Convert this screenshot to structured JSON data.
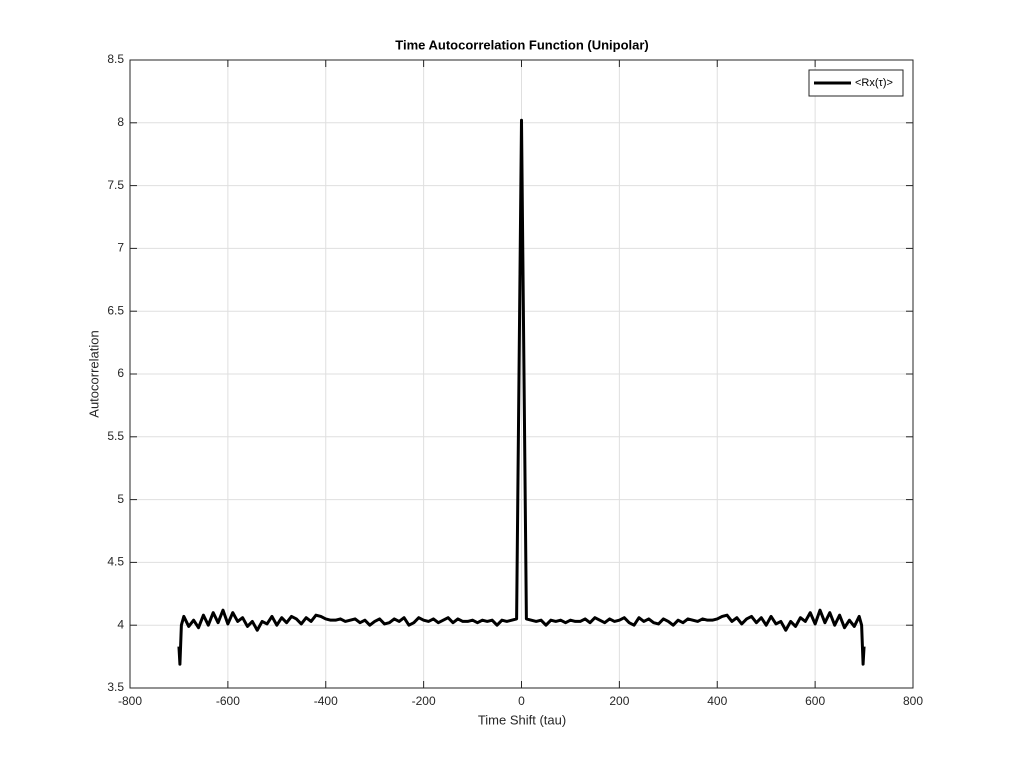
{
  "chart_data": {
    "type": "line",
    "title": "Time Autocorrelation Function (Unipolar)",
    "xlabel": "Time Shift (tau)",
    "ylabel": "Autocorrelation",
    "xlim": [
      -800,
      800
    ],
    "xticks": [
      -800,
      -600,
      -400,
      -200,
      0,
      200,
      400,
      600,
      800
    ],
    "ylim": [
      3.5,
      8.5
    ],
    "yticks": [
      3.5,
      4,
      4.5,
      5,
      5.5,
      6,
      6.5,
      7,
      7.5,
      8,
      8.5
    ],
    "grid": true,
    "legend": "upper right",
    "x": [
      -700,
      -698,
      -695,
      -690,
      -680,
      -670,
      -660,
      -650,
      -640,
      -630,
      -620,
      -610,
      -600,
      -590,
      -580,
      -570,
      -560,
      -550,
      -540,
      -530,
      -520,
      -510,
      -500,
      -490,
      -480,
      -470,
      -460,
      -450,
      -440,
      -430,
      -420,
      -410,
      -400,
      -390,
      -380,
      -370,
      -360,
      -350,
      -340,
      -330,
      -320,
      -310,
      -300,
      -290,
      -280,
      -270,
      -260,
      -250,
      -240,
      -230,
      -220,
      -210,
      -200,
      -190,
      -180,
      -170,
      -160,
      -150,
      -140,
      -130,
      -120,
      -110,
      -100,
      -90,
      -80,
      -70,
      -60,
      -50,
      -40,
      -30,
      -20,
      -10,
      0,
      10,
      20,
      30,
      40,
      50,
      60,
      70,
      80,
      90,
      100,
      110,
      120,
      130,
      140,
      150,
      160,
      170,
      180,
      190,
      200,
      210,
      220,
      230,
      240,
      250,
      260,
      270,
      280,
      290,
      300,
      310,
      320,
      330,
      340,
      350,
      360,
      370,
      380,
      390,
      400,
      410,
      420,
      430,
      440,
      450,
      460,
      470,
      480,
      490,
      500,
      510,
      520,
      530,
      540,
      550,
      560,
      570,
      580,
      590,
      600,
      610,
      620,
      630,
      640,
      650,
      660,
      670,
      680,
      690,
      695,
      698,
      700
    ],
    "series": [
      {
        "name": "<Rx(τ)>",
        "color": "#000000",
        "values": [
          3.83,
          3.69,
          4.0,
          4.07,
          3.99,
          4.04,
          3.98,
          4.08,
          4.0,
          4.1,
          4.02,
          4.12,
          4.01,
          4.1,
          4.03,
          4.06,
          3.99,
          4.03,
          3.96,
          4.03,
          4.01,
          4.07,
          4.0,
          4.06,
          4.02,
          4.07,
          4.05,
          4.01,
          4.06,
          4.03,
          4.08,
          4.07,
          4.05,
          4.04,
          4.04,
          4.05,
          4.03,
          4.04,
          4.05,
          4.02,
          4.04,
          4.0,
          4.03,
          4.05,
          4.01,
          4.02,
          4.05,
          4.03,
          4.06,
          4.0,
          4.02,
          4.06,
          4.04,
          4.03,
          4.05,
          4.02,
          4.04,
          4.06,
          4.02,
          4.05,
          4.03,
          4.03,
          4.04,
          4.02,
          4.04,
          4.03,
          4.04,
          4.0,
          4.04,
          4.03,
          4.04,
          4.05,
          8.02,
          4.05,
          4.04,
          4.03,
          4.04,
          4.0,
          4.04,
          4.03,
          4.04,
          4.02,
          4.04,
          4.03,
          4.03,
          4.05,
          4.02,
          4.06,
          4.04,
          4.02,
          4.05,
          4.03,
          4.04,
          4.06,
          4.02,
          4.0,
          4.06,
          4.03,
          4.05,
          4.02,
          4.01,
          4.05,
          4.03,
          4.0,
          4.04,
          4.02,
          4.05,
          4.04,
          4.03,
          4.05,
          4.04,
          4.04,
          4.05,
          4.07,
          4.08,
          4.03,
          4.06,
          4.01,
          4.05,
          4.07,
          4.02,
          4.06,
          4.0,
          4.07,
          4.01,
          4.03,
          3.96,
          4.03,
          3.99,
          4.06,
          4.03,
          4.1,
          4.01,
          4.12,
          4.02,
          4.1,
          4.0,
          4.08,
          3.98,
          4.04,
          3.99,
          4.07,
          4.0,
          3.69,
          3.83
        ]
      }
    ]
  }
}
